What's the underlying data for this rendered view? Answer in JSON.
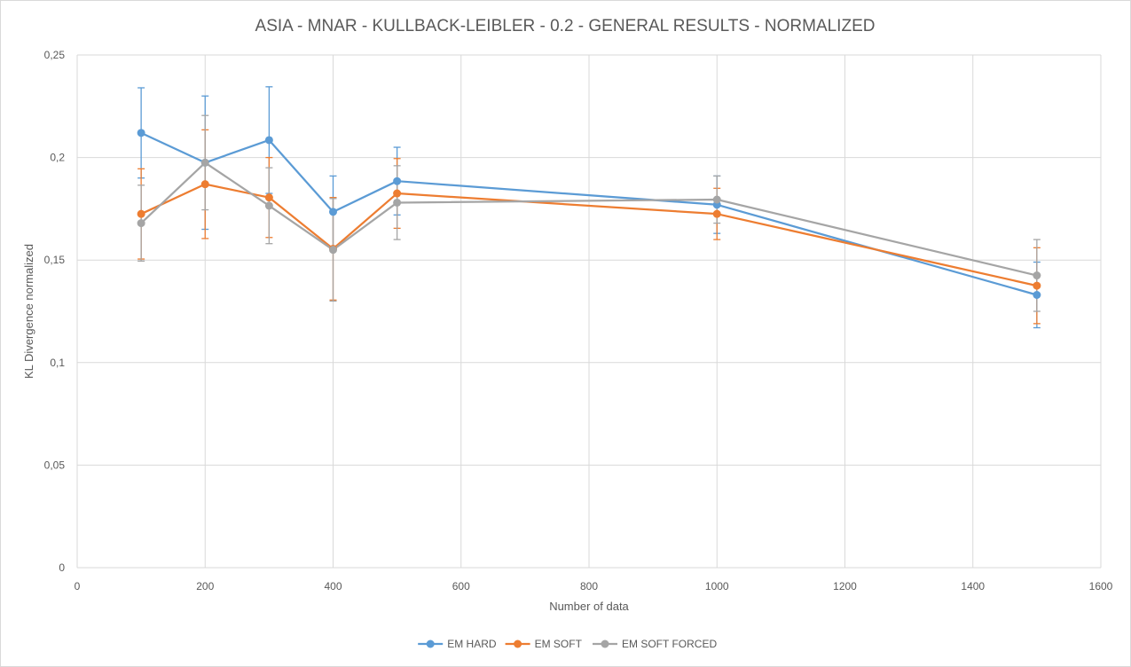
{
  "chart_data": {
    "type": "line",
    "title": "ASIA - MNAR - KULLBACK-LEIBLER - 0.2 - GENERAL RESULTS - NORMALIZED",
    "xlabel": "Number of data",
    "ylabel": "KL Divergence normalized",
    "xlim": [
      0,
      1600
    ],
    "ylim": [
      0,
      0.25
    ],
    "x_ticks": [
      0,
      200,
      400,
      600,
      800,
      1000,
      1200,
      1400,
      1600
    ],
    "x_tick_labels": [
      "0",
      "200",
      "400",
      "600",
      "800",
      "1000",
      "1200",
      "1400",
      "1600"
    ],
    "y_ticks": [
      0,
      0.05,
      0.1,
      0.15,
      0.2,
      0.25
    ],
    "y_tick_labels": [
      "0",
      "0,05",
      "0,1",
      "0,15",
      "0,2",
      "0,25"
    ],
    "grid": true,
    "legend_position": "bottom",
    "series": [
      {
        "name": "EM HARD",
        "color": "#5b9bd5",
        "x": [
          100,
          200,
          300,
          400,
          500,
          1000,
          1500
        ],
        "y": [
          0.212,
          0.1975,
          0.2085,
          0.1735,
          0.1885,
          0.177,
          0.133
        ],
        "error": [
          0.022,
          0.0325,
          0.026,
          0.0175,
          0.0165,
          0.014,
          0.016
        ]
      },
      {
        "name": "EM SOFT",
        "color": "#ed7d31",
        "x": [
          100,
          200,
          300,
          400,
          500,
          1000,
          1500
        ],
        "y": [
          0.1725,
          0.187,
          0.1805,
          0.1555,
          0.1825,
          0.1725,
          0.1375
        ],
        "error": [
          0.022,
          0.0265,
          0.0195,
          0.025,
          0.017,
          0.0125,
          0.0185
        ]
      },
      {
        "name": "EM SOFT FORCED",
        "color": "#a5a5a5",
        "x": [
          100,
          200,
          300,
          400,
          500,
          1000,
          1500
        ],
        "y": [
          0.168,
          0.1975,
          0.1765,
          0.155,
          0.178,
          0.1795,
          0.1425
        ],
        "error": [
          0.0185,
          0.023,
          0.0185,
          0.025,
          0.018,
          0.0115,
          0.0175
        ]
      }
    ]
  }
}
